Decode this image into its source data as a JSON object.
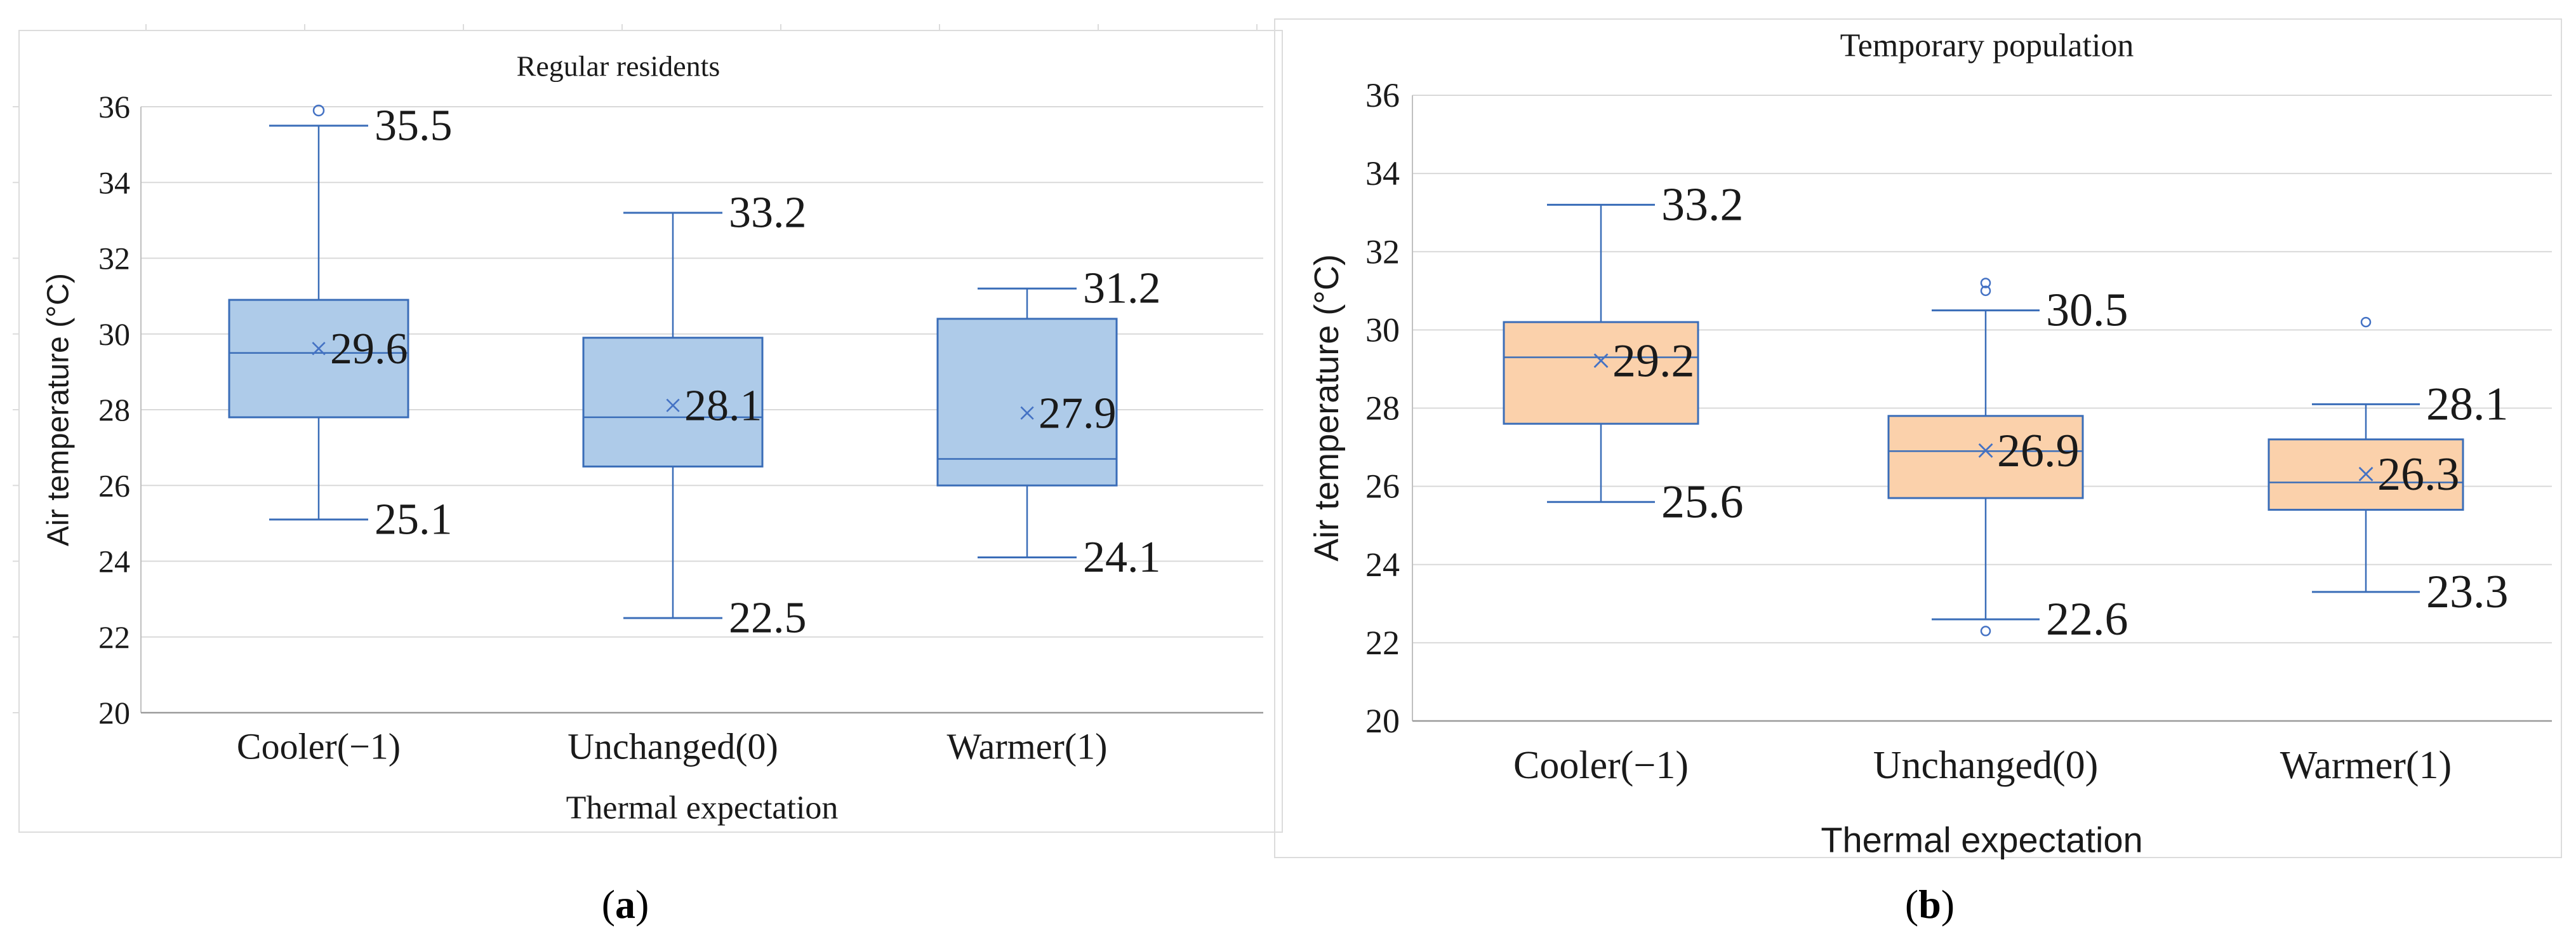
{
  "figure": {
    "captions": [
      {
        "open": "(",
        "letter": "a",
        "close": ")"
      },
      {
        "open": "(",
        "letter": "b",
        "close": ")"
      }
    ]
  },
  "chart_data": [
    {
      "type": "boxplot",
      "title": "Regular residents",
      "xlabel": "Thermal expectation",
      "ylabel": "Air temperature (°C)",
      "ylim": [
        20,
        36
      ],
      "yticks": [
        20,
        22,
        24,
        26,
        28,
        30,
        32,
        34,
        36
      ],
      "grid": true,
      "legend": "none",
      "categories": [
        "Cooler(−1)",
        "Unchanged(0)",
        "Warmer(1)"
      ],
      "series": [
        {
          "category": "Cooler(−1)",
          "min": 25.1,
          "q1": 27.8,
          "median": 29.5,
          "q3": 30.9,
          "max": 35.5,
          "mean": 29.6,
          "outliers": [
            35.9
          ],
          "labels": {
            "max": "35.5",
            "mean": "29.6",
            "min": "25.1"
          }
        },
        {
          "category": "Unchanged(0)",
          "min": 22.5,
          "q1": 26.5,
          "median": 27.8,
          "q3": 29.9,
          "max": 33.2,
          "mean": 28.1,
          "outliers": [],
          "labels": {
            "max": "33.2",
            "mean": "28.1",
            "min": "22.5"
          }
        },
        {
          "category": "Warmer(1)",
          "min": 24.1,
          "q1": 26.0,
          "median": 26.7,
          "q3": 30.4,
          "max": 31.2,
          "mean": 27.9,
          "outliers": [],
          "labels": {
            "max": "31.2",
            "mean": "27.9",
            "min": "24.1"
          }
        }
      ],
      "colors": {
        "box_fill": "#aecbe9",
        "line": "#3a6db8",
        "mean_marker": "#4472c4",
        "grid": "#d9d9d9",
        "axis": "#9b9b9b",
        "frame": "#dcdcdc",
        "text": "#1a1a1a"
      }
    },
    {
      "type": "boxplot",
      "title": "Temporary population",
      "xlabel": "Thermal expectation",
      "ylabel": "Air temperature (°C)",
      "ylim": [
        20,
        36
      ],
      "yticks": [
        20,
        22,
        24,
        26,
        28,
        30,
        32,
        34,
        36
      ],
      "grid": true,
      "legend": "none",
      "categories": [
        "Cooler(−1)",
        "Unchanged(0)",
        "Warmer(1)"
      ],
      "series": [
        {
          "category": "Cooler(−1)",
          "min": 25.6,
          "q1": 27.6,
          "median": 29.3,
          "q3": 30.2,
          "max": 33.2,
          "mean": 29.2,
          "outliers": [],
          "labels": {
            "max": "33.2",
            "mean": "29.2",
            "min": "25.6"
          }
        },
        {
          "category": "Unchanged(0)",
          "min": 22.6,
          "q1": 25.7,
          "median": 26.9,
          "q3": 27.8,
          "max": 30.5,
          "mean": 26.9,
          "outliers": [
            31.2,
            31.0,
            22.3
          ],
          "labels": {
            "max": "30.5",
            "mean": "26.9",
            "min": "22.6"
          }
        },
        {
          "category": "Warmer(1)",
          "min": 23.3,
          "q1": 25.4,
          "median": 26.1,
          "q3": 27.2,
          "max": 28.1,
          "mean": 26.3,
          "outliers": [
            30.2
          ],
          "labels": {
            "max": "28.1",
            "mean": "26.3",
            "min": "23.3"
          }
        }
      ],
      "colors": {
        "box_fill": "#fbd1ab",
        "line": "#3a6db8",
        "mean_marker": "#4472c4",
        "grid": "#d9d9d9",
        "axis": "#9b9b9b",
        "frame": "#dcdcdc",
        "text": "#1a1a1a"
      }
    }
  ]
}
